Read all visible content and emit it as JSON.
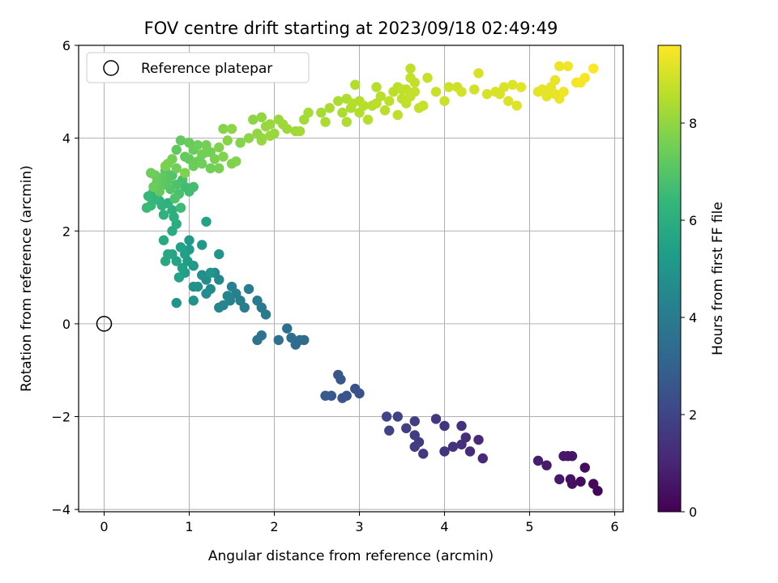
{
  "chart_data": {
    "type": "scatter",
    "title": "FOV centre drift starting at 2023/09/18 02:49:49",
    "xlabel": "Angular distance from reference (arcmin)",
    "ylabel": "Rotation from reference (arcmin)",
    "xlim": [
      -0.3,
      6.1
    ],
    "ylim": [
      -4.05,
      6.0
    ],
    "x_ticks": [
      0,
      1,
      2,
      3,
      4,
      5,
      6
    ],
    "y_ticks": [
      -4,
      -2,
      0,
      2,
      4,
      6
    ],
    "x_tick_labels": [
      "0",
      "1",
      "2",
      "3",
      "4",
      "5",
      "6"
    ],
    "y_tick_labels": [
      "−4",
      "−2",
      "0",
      "2",
      "4",
      "6"
    ],
    "grid": true,
    "legend": {
      "placement": "upper-left",
      "entries": [
        "Reference platepar"
      ]
    },
    "reference_point": {
      "x": 0,
      "y": 0,
      "label": "Reference platepar"
    },
    "colorbar": {
      "label": "Hours from first FF file",
      "min": 0,
      "max": 9.6,
      "ticks": [
        0,
        2,
        4,
        6,
        8
      ],
      "tick_labels": [
        "0",
        "2",
        "4",
        "6",
        "8"
      ],
      "colormap": "viridis"
    },
    "colors": {
      "viridis_stops": [
        "#440154",
        "#482878",
        "#3e4989",
        "#31688e",
        "#26828e",
        "#1f9e89",
        "#35b779",
        "#6ece58",
        "#b5de2b",
        "#fde725"
      ]
    },
    "series": [
      {
        "points": [
          [
            5.8,
            -3.6
          ],
          [
            5.75,
            -3.45
          ],
          [
            5.65,
            -3.1
          ],
          [
            5.6,
            -3.4
          ],
          [
            5.5,
            -3.45
          ],
          [
            5.48,
            -3.35
          ],
          [
            5.45,
            -2.85
          ],
          [
            5.5,
            -2.85
          ],
          [
            5.4,
            -2.85
          ],
          [
            5.35,
            -3.35
          ],
          [
            5.2,
            -3.05
          ],
          [
            5.1,
            -2.95
          ],
          [
            4.45,
            -2.9
          ],
          [
            4.4,
            -2.5
          ],
          [
            4.3,
            -2.75
          ],
          [
            4.25,
            -2.45
          ],
          [
            4.2,
            -2.6
          ],
          [
            4.2,
            -2.2
          ],
          [
            4.1,
            -2.65
          ],
          [
            4.0,
            -2.75
          ],
          [
            4.0,
            -2.2
          ],
          [
            3.9,
            -2.05
          ],
          [
            3.75,
            -2.8
          ],
          [
            3.7,
            -2.55
          ],
          [
            3.65,
            -2.4
          ],
          [
            3.65,
            -2.65
          ],
          [
            3.65,
            -2.1
          ],
          [
            3.55,
            -2.25
          ],
          [
            3.45,
            -2.0
          ],
          [
            3.35,
            -2.3
          ],
          [
            3.32,
            -2.0
          ],
          [
            3.0,
            -1.5
          ],
          [
            2.95,
            -1.4
          ],
          [
            2.85,
            -1.55
          ],
          [
            2.8,
            -1.6
          ],
          [
            2.78,
            -1.2
          ],
          [
            2.75,
            -1.1
          ],
          [
            2.67,
            -1.55
          ],
          [
            2.6,
            -1.55
          ],
          [
            2.35,
            -0.35
          ],
          [
            2.3,
            -0.35
          ],
          [
            2.25,
            -0.45
          ],
          [
            2.2,
            -0.3
          ],
          [
            2.15,
            -0.1
          ],
          [
            2.05,
            -0.35
          ],
          [
            1.85,
            -0.25
          ],
          [
            1.8,
            -0.35
          ],
          [
            1.9,
            0.2
          ],
          [
            1.85,
            0.35
          ],
          [
            1.8,
            0.5
          ],
          [
            1.7,
            0.75
          ],
          [
            1.65,
            0.35
          ],
          [
            1.6,
            0.5
          ],
          [
            1.55,
            0.65
          ],
          [
            1.5,
            0.8
          ],
          [
            1.48,
            0.5
          ],
          [
            1.45,
            0.6
          ],
          [
            1.4,
            0.4
          ],
          [
            1.35,
            0.35
          ],
          [
            1.35,
            0.95
          ],
          [
            1.3,
            1.1
          ],
          [
            1.25,
            0.75
          ],
          [
            1.2,
            0.65
          ],
          [
            1.2,
            0.95
          ],
          [
            1.15,
            1.05
          ],
          [
            1.1,
            0.8
          ],
          [
            1.05,
            0.8
          ],
          [
            1.05,
            0.5
          ],
          [
            0.85,
            0.45
          ],
          [
            1.35,
            1.5
          ],
          [
            1.25,
            1.1
          ],
          [
            1.15,
            1.7
          ],
          [
            1.05,
            1.25
          ],
          [
            1.0,
            1.8
          ],
          [
            1.0,
            1.6
          ],
          [
            0.98,
            1.35
          ],
          [
            0.95,
            1.1
          ],
          [
            0.95,
            1.5
          ],
          [
            0.92,
            1.2
          ],
          [
            0.9,
            1.65
          ],
          [
            0.88,
            1.0
          ],
          [
            0.85,
            1.35
          ],
          [
            0.8,
            1.5
          ],
          [
            0.75,
            1.5
          ],
          [
            0.72,
            1.35
          ],
          [
            0.7,
            1.8
          ],
          [
            1.2,
            2.2
          ],
          [
            0.8,
            2.0
          ],
          [
            0.85,
            2.15
          ],
          [
            0.82,
            2.3
          ],
          [
            0.8,
            2.45
          ],
          [
            0.75,
            2.6
          ],
          [
            0.7,
            2.35
          ],
          [
            0.68,
            2.55
          ],
          [
            0.65,
            2.65
          ],
          [
            0.6,
            2.7
          ],
          [
            0.58,
            2.85
          ],
          [
            0.55,
            2.55
          ],
          [
            0.52,
            2.75
          ],
          [
            0.5,
            2.5
          ],
          [
            0.9,
            2.5
          ],
          [
            0.95,
            2.95
          ],
          [
            1.0,
            2.85
          ],
          [
            1.05,
            2.95
          ],
          [
            0.92,
            3.1
          ],
          [
            0.88,
            2.8
          ],
          [
            0.85,
            3.0
          ],
          [
            0.83,
            2.7
          ],
          [
            0.8,
            3.2
          ],
          [
            0.78,
            2.9
          ],
          [
            0.75,
            3.1
          ],
          [
            0.72,
            3.3
          ],
          [
            0.7,
            3.0
          ],
          [
            0.68,
            3.15
          ],
          [
            0.65,
            2.85
          ],
          [
            0.62,
            3.05
          ],
          [
            0.6,
            3.2
          ],
          [
            0.58,
            2.95
          ],
          [
            0.55,
            3.25
          ],
          [
            0.85,
            3.35
          ],
          [
            0.8,
            3.55
          ],
          [
            0.75,
            3.45
          ],
          [
            0.72,
            3.4
          ],
          [
            0.95,
            3.25
          ],
          [
            1.0,
            3.55
          ],
          [
            1.05,
            3.75
          ],
          [
            1.1,
            3.5
          ],
          [
            1.1,
            3.85
          ],
          [
            1.15,
            3.65
          ],
          [
            1.2,
            3.85
          ],
          [
            1.25,
            3.7
          ],
          [
            1.3,
            3.55
          ],
          [
            1.35,
            3.8
          ],
          [
            1.4,
            3.6
          ],
          [
            1.4,
            4.2
          ],
          [
            1.45,
            3.95
          ],
          [
            1.5,
            4.2
          ],
          [
            1.25,
            3.35
          ],
          [
            1.35,
            3.35
          ],
          [
            1.5,
            3.45
          ],
          [
            1.55,
            3.5
          ],
          [
            1.6,
            3.9
          ],
          [
            0.85,
            3.75
          ],
          [
            0.9,
            3.95
          ],
          [
            0.95,
            3.6
          ],
          [
            1.0,
            3.9
          ],
          [
            1.05,
            3.4
          ],
          [
            1.15,
            3.45
          ],
          [
            1.2,
            3.7
          ],
          [
            1.7,
            4.0
          ],
          [
            1.75,
            4.4
          ],
          [
            1.8,
            4.1
          ],
          [
            1.85,
            4.0
          ],
          [
            1.85,
            3.95
          ],
          [
            1.9,
            4.25
          ],
          [
            1.95,
            4.3
          ],
          [
            2.0,
            4.1
          ],
          [
            2.05,
            4.4
          ],
          [
            2.1,
            4.3
          ],
          [
            2.15,
            4.2
          ],
          [
            1.85,
            4.45
          ],
          [
            1.95,
            4.05
          ],
          [
            2.25,
            4.15
          ],
          [
            2.3,
            4.15
          ],
          [
            2.35,
            4.4
          ],
          [
            2.4,
            4.55
          ],
          [
            2.55,
            4.55
          ],
          [
            2.6,
            4.35
          ],
          [
            2.65,
            4.65
          ],
          [
            2.75,
            4.8
          ],
          [
            2.8,
            4.55
          ],
          [
            2.85,
            4.35
          ],
          [
            2.9,
            4.65
          ],
          [
            2.85,
            4.85
          ],
          [
            3.0,
            4.55
          ],
          [
            3.05,
            4.7
          ],
          [
            3.1,
            4.4
          ],
          [
            3.15,
            4.7
          ],
          [
            3.2,
            4.75
          ],
          [
            3.25,
            4.9
          ],
          [
            3.3,
            4.6
          ],
          [
            3.35,
            4.8
          ],
          [
            3.4,
            5.0
          ],
          [
            3.45,
            4.5
          ],
          [
            3.5,
            4.85
          ],
          [
            3.55,
            4.75
          ],
          [
            3.55,
            5.05
          ],
          [
            3.6,
            4.9
          ],
          [
            3.65,
            5.0
          ],
          [
            3.7,
            4.65
          ],
          [
            3.75,
            4.7
          ],
          [
            3.8,
            5.3
          ],
          [
            3.9,
            5.0
          ],
          [
            4.0,
            4.8
          ],
          [
            4.05,
            5.1
          ],
          [
            4.15,
            5.1
          ],
          [
            4.2,
            5.0
          ],
          [
            4.35,
            5.05
          ],
          [
            4.4,
            5.4
          ],
          [
            4.5,
            4.95
          ],
          [
            4.6,
            5.0
          ],
          [
            4.65,
            4.95
          ],
          [
            4.7,
            5.1
          ],
          [
            4.75,
            4.8
          ],
          [
            4.8,
            5.15
          ],
          [
            4.85,
            4.7
          ],
          [
            4.9,
            5.1
          ],
          [
            2.95,
            5.15
          ],
          [
            3.2,
            5.1
          ],
          [
            3.45,
            5.1
          ],
          [
            3.6,
            5.5
          ],
          [
            3.65,
            5.2
          ],
          [
            3.0,
            4.8
          ],
          [
            3.05,
            4.7
          ],
          [
            2.92,
            4.75
          ],
          [
            3.6,
            5.3
          ],
          [
            3.5,
            5.05
          ],
          [
            5.1,
            5.0
          ],
          [
            5.15,
            5.05
          ],
          [
            5.2,
            4.9
          ],
          [
            5.25,
            5.1
          ],
          [
            5.3,
            5.25
          ],
          [
            5.35,
            4.85
          ],
          [
            5.35,
            5.55
          ],
          [
            5.4,
            5.0
          ],
          [
            5.45,
            5.55
          ],
          [
            5.55,
            5.2
          ],
          [
            5.65,
            5.3
          ],
          [
            5.75,
            5.5
          ],
          [
            5.6,
            5.2
          ],
          [
            5.3,
            4.95
          ],
          [
            5.2,
            5.0
          ]
        ],
        "hours": [
          0.1,
          0.2,
          0.3,
          0.35,
          0.4,
          0.45,
          0.5,
          0.55,
          0.6,
          0.65,
          0.7,
          0.8,
          1.1,
          1.15,
          1.2,
          1.25,
          1.3,
          1.35,
          1.4,
          1.45,
          1.5,
          1.55,
          1.6,
          1.65,
          1.7,
          1.75,
          1.8,
          1.85,
          1.9,
          1.95,
          2.0,
          2.4,
          2.45,
          2.5,
          2.55,
          2.6,
          2.65,
          2.7,
          2.75,
          3.3,
          3.35,
          3.4,
          3.45,
          3.5,
          3.55,
          3.6,
          3.65,
          3.9,
          3.95,
          4.0,
          4.05,
          4.1,
          4.15,
          4.2,
          4.25,
          4.3,
          4.35,
          4.4,
          4.45,
          4.5,
          4.55,
          4.6,
          4.65,
          4.7,
          4.75,
          4.8,
          4.85,
          4.9,
          4.95,
          5.0,
          5.05,
          5.1,
          5.15,
          5.2,
          5.25,
          5.3,
          5.35,
          5.4,
          5.45,
          5.5,
          5.55,
          5.6,
          5.65,
          5.7,
          5.75,
          5.8,
          5.5,
          5.9,
          5.95,
          6.0,
          6.05,
          6.1,
          6.15,
          6.2,
          6.25,
          6.3,
          6.35,
          6.4,
          6.45,
          6.5,
          6.55,
          6.6,
          6.65,
          6.7,
          6.75,
          6.8,
          6.85,
          6.9,
          6.95,
          7.0,
          7.05,
          7.1,
          7.15,
          7.2,
          7.25,
          7.3,
          7.35,
          7.4,
          7.45,
          7.5,
          7.55,
          7.6,
          7.65,
          7.7,
          7.3,
          7.35,
          7.4,
          7.45,
          7.5,
          7.55,
          7.6,
          7.65,
          7.7,
          7.75,
          7.8,
          7.85,
          7.9,
          7.5,
          7.6,
          7.7,
          7.75,
          7.8,
          7.2,
          7.25,
          7.3,
          7.35,
          7.4,
          7.45,
          7.5,
          7.9,
          7.95,
          8.0,
          8.0,
          8.05,
          8.05,
          8.1,
          8.1,
          8.15,
          8.15,
          8.2,
          8.0,
          8.1,
          8.2,
          8.25,
          8.25,
          8.3,
          8.3,
          8.35,
          8.35,
          8.4,
          8.4,
          8.45,
          8.45,
          8.45,
          8.5,
          8.5,
          8.55,
          8.55,
          8.6,
          8.6,
          8.6,
          8.65,
          8.65,
          8.65,
          8.7,
          8.7,
          8.7,
          8.75,
          8.75,
          8.75,
          8.8,
          8.8,
          8.85,
          8.85,
          8.9,
          8.9,
          8.95,
          8.95,
          9.0,
          9.0,
          9.05,
          9.05,
          9.1,
          9.1,
          9.15,
          9.15,
          9.2,
          8.5,
          8.55,
          8.6,
          8.7,
          8.75,
          8.5,
          8.55,
          8.5,
          8.75,
          8.7,
          9.2,
          9.25,
          9.25,
          9.3,
          9.3,
          9.35,
          9.35,
          9.4,
          9.4,
          9.45,
          9.5,
          9.55,
          9.5,
          9.3,
          9.25
        ]
      }
    ]
  }
}
